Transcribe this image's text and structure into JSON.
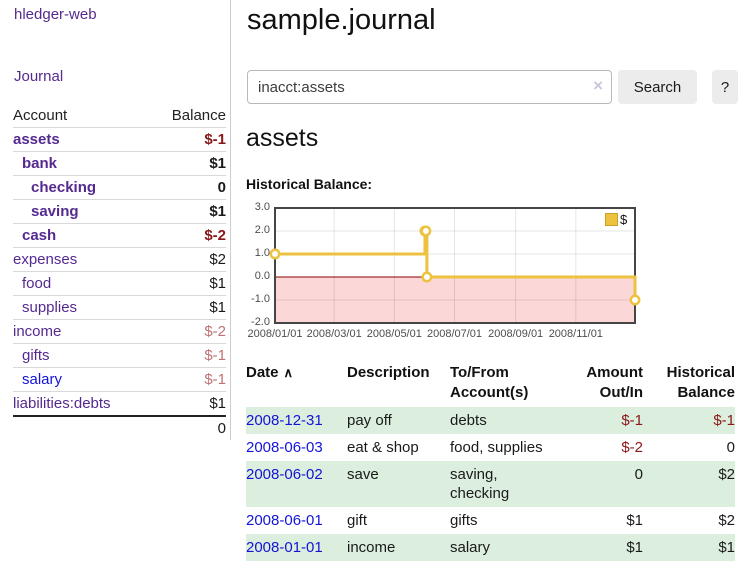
{
  "app": {
    "title": "hledger-web"
  },
  "sidebar": {
    "nav_journal": "Journal",
    "accounts": {
      "header_account": "Account",
      "header_balance": "Balance",
      "rows": [
        {
          "name": "assets",
          "level": 1,
          "bold": true,
          "balance": "$-1",
          "balance_style": "neg-strong"
        },
        {
          "name": "bank",
          "level": 2,
          "bold": true,
          "balance": "$1",
          "balance_style": "pos"
        },
        {
          "name": "checking",
          "level": 3,
          "bold": true,
          "balance": "0",
          "balance_style": "pos"
        },
        {
          "name": "saving",
          "level": 3,
          "bold": true,
          "balance": "$1",
          "balance_style": "pos"
        },
        {
          "name": "cash",
          "level": 2,
          "bold": true,
          "balance": "$-2",
          "balance_style": "neg-strong"
        },
        {
          "name": "expenses",
          "level": 1,
          "bold": false,
          "balance": "$2",
          "balance_style": "pos"
        },
        {
          "name": "food",
          "level": 2,
          "bold": false,
          "balance": "$1",
          "balance_style": "pos"
        },
        {
          "name": "supplies",
          "level": 2,
          "bold": false,
          "balance": "$1",
          "balance_style": "pos"
        },
        {
          "name": "income",
          "level": 1,
          "bold": false,
          "balance": "$-2",
          "balance_style": "neg-soft"
        },
        {
          "name": "gifts",
          "level": 2,
          "bold": false,
          "balance": "$-1",
          "balance_style": "neg-soft"
        },
        {
          "name": "salary",
          "level": 2,
          "bold": false,
          "link_unvisited": true,
          "balance": "$-1",
          "balance_style": "neg-soft"
        },
        {
          "name": "liabilities:debts",
          "level": 1,
          "bold": false,
          "balance": "$1",
          "balance_style": "pos"
        }
      ],
      "total": "0"
    }
  },
  "main": {
    "title": "sample.journal",
    "search": {
      "value": "inacct:assets",
      "clear_icon": "×",
      "button_label": "Search",
      "help_label": "?"
    },
    "account_heading": "assets",
    "chart_label": "Historical Balance:"
  },
  "chart_data": {
    "type": "line",
    "step": true,
    "title": "Historical Balance of assets",
    "series": [
      {
        "name": "$",
        "color": "#EDC240",
        "points": [
          [
            "2008-01-01",
            1
          ],
          [
            "2008-06-01",
            2
          ],
          [
            "2008-06-02",
            2
          ],
          [
            "2008-06-03",
            0
          ],
          [
            "2008-12-31",
            -1
          ]
        ]
      }
    ],
    "x_ticks": [
      "2008/01/01",
      "2008/03/01",
      "2008/05/01",
      "2008/07/01",
      "2008/09/01",
      "2008/11/01"
    ],
    "y_ticks": [
      3.0,
      2.0,
      1.0,
      0.0,
      -1.0,
      -2.0
    ],
    "ylim": [
      -2,
      3
    ],
    "x_range": [
      "2008-01-01",
      "2008-12-31"
    ],
    "grid": true,
    "zero_line_color": "#8b0000",
    "negative_region_color": "#fbd7d7",
    "legend": {
      "label": "$",
      "color": "#EDC240",
      "position": "top-right"
    }
  },
  "transactions": {
    "headers": [
      {
        "text": "Date",
        "sort_icon": "∧",
        "align": "l"
      },
      {
        "text": "Description",
        "align": "l"
      },
      {
        "text": "To/From\nAccount(s)",
        "align": "l"
      },
      {
        "text": "Amount\nOut/In",
        "align": "r"
      },
      {
        "text": "Historical\nBalance",
        "align": "r"
      }
    ],
    "rows": [
      {
        "date": "2008-12-31",
        "description": "pay off",
        "accounts": "debts",
        "amount": "$-1",
        "balance": "$-1"
      },
      {
        "date": "2008-06-03",
        "description": "eat & shop",
        "accounts": "food, supplies",
        "amount": "$-2",
        "balance": "0"
      },
      {
        "date": "2008-06-02",
        "description": "save",
        "accounts": "saving,\nchecking",
        "amount": "0",
        "balance": "$2"
      },
      {
        "date": "2008-06-01",
        "description": "gift",
        "accounts": "gifts",
        "amount": "$1",
        "balance": "$2"
      },
      {
        "date": "2008-01-01",
        "description": "income",
        "accounts": "salary",
        "amount": "$1",
        "balance": "$1"
      }
    ]
  }
}
